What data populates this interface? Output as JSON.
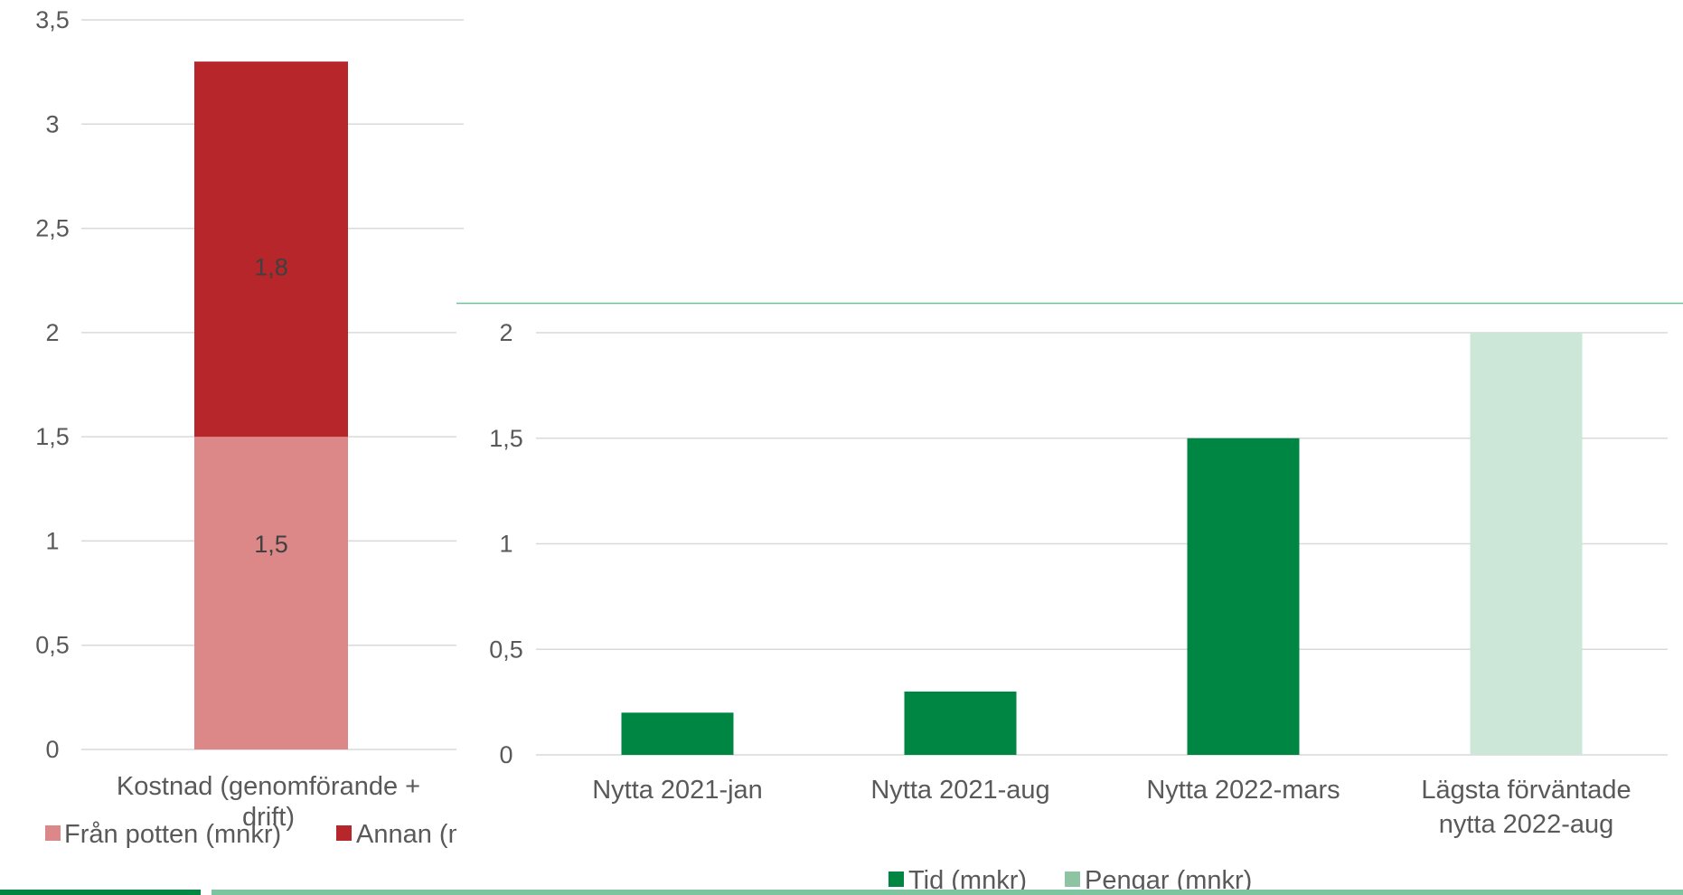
{
  "chart_data": [
    {
      "type": "bar",
      "stacked": true,
      "categories": [
        "Kostnad (genomförande + drift)"
      ],
      "series": [
        {
          "name": "Från potten (mnkr)",
          "values": [
            1.5
          ],
          "color": "#dc8888"
        },
        {
          "name": "Annan (mnkr)",
          "values": [
            1.8
          ],
          "color": "#b7262a"
        }
      ],
      "data_labels": [
        "1,5",
        "1,8"
      ],
      "ylim": [
        0,
        3.5
      ],
      "yticks": [
        "0",
        "0,5",
        "1",
        "1,5",
        "2",
        "2,5",
        "3",
        "3,5"
      ],
      "grid": true,
      "legend_position": "bottom"
    },
    {
      "type": "bar",
      "stacked": true,
      "categories": [
        "Nytta 2021-jan",
        "Nytta 2021-aug",
        "Nytta 2022-mars",
        "Lägsta förväntade nytta 2022-aug"
      ],
      "series": [
        {
          "name": "Tid (mnkr)",
          "values": [
            0.2,
            0.3,
            1.5,
            0
          ],
          "color": "#008643"
        },
        {
          "name": "Pengar (mnkr)",
          "values": [
            0,
            0,
            0,
            2.0
          ],
          "color": "#cce7d8"
        }
      ],
      "legend_colors": [
        "#008643",
        "#8ec4a3"
      ],
      "ylim": [
        0,
        2
      ],
      "yticks": [
        "0",
        "0,5",
        "1",
        "1,5",
        "2"
      ],
      "grid": true,
      "legend_position": "bottom"
    }
  ],
  "colors": {
    "grid": "#d9d9d9",
    "text": "#595959",
    "frame_line": "#6fc39b",
    "bottom_bar_dark": "#008643",
    "bottom_bar_light": "#7dc4a0"
  }
}
